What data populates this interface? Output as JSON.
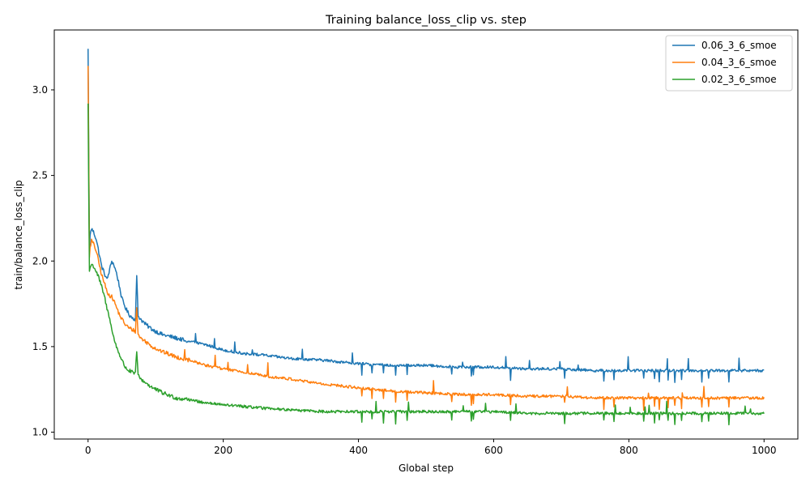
{
  "chart_data": {
    "type": "line",
    "title": "Training balance_loss_clip vs. step",
    "xlabel": "Global step",
    "ylabel": "train/balance_loss_clip",
    "xlim": [
      -50,
      1050
    ],
    "ylim": [
      0.96,
      3.35
    ],
    "xticks": [
      0,
      200,
      400,
      600,
      800,
      1000
    ],
    "yticks": [
      1.0,
      1.5,
      2.0,
      2.5,
      3.0
    ],
    "ytick_labels": [
      "1.0",
      "1.5",
      "2.0",
      "2.5",
      "3.0"
    ],
    "legend_position": "top-right",
    "grid": false,
    "series": [
      {
        "name": "0.06_3_6_smoe",
        "color": "#1f77b4",
        "x": [
          0,
          1,
          2,
          3,
          5,
          8,
          12,
          16,
          20,
          25,
          28,
          32,
          35,
          38,
          42,
          46,
          50,
          55,
          60,
          65,
          70,
          72,
          74,
          78,
          85,
          95,
          110,
          130,
          150,
          175,
          200,
          230,
          260,
          300,
          350,
          400,
          450,
          500,
          550,
          600,
          650,
          700,
          750,
          800,
          850,
          900,
          950,
          1000
        ],
        "y": [
          3.24,
          2.65,
          2.05,
          2.15,
          2.19,
          2.17,
          2.13,
          2.05,
          1.97,
          1.92,
          1.89,
          1.95,
          2.0,
          1.98,
          1.93,
          1.86,
          1.78,
          1.73,
          1.69,
          1.67,
          1.66,
          1.91,
          1.68,
          1.66,
          1.63,
          1.6,
          1.57,
          1.55,
          1.53,
          1.51,
          1.48,
          1.46,
          1.45,
          1.43,
          1.42,
          1.4,
          1.39,
          1.39,
          1.38,
          1.38,
          1.37,
          1.37,
          1.36,
          1.36,
          1.36,
          1.36,
          1.36,
          1.36
        ]
      },
      {
        "name": "0.04_3_6_smoe",
        "color": "#ff7f0e",
        "x": [
          0,
          1,
          2,
          3,
          5,
          8,
          12,
          16,
          20,
          25,
          28,
          32,
          35,
          38,
          42,
          46,
          50,
          55,
          60,
          65,
          70,
          72,
          74,
          78,
          85,
          95,
          110,
          130,
          150,
          175,
          200,
          230,
          260,
          300,
          350,
          400,
          450,
          500,
          550,
          600,
          650,
          700,
          750,
          800,
          850,
          900,
          950,
          1000
        ],
        "y": [
          3.14,
          2.6,
          2.02,
          2.08,
          2.12,
          2.1,
          2.06,
          1.99,
          1.92,
          1.86,
          1.82,
          1.8,
          1.79,
          1.77,
          1.73,
          1.69,
          1.66,
          1.63,
          1.61,
          1.6,
          1.59,
          1.73,
          1.57,
          1.55,
          1.53,
          1.5,
          1.47,
          1.44,
          1.42,
          1.39,
          1.37,
          1.35,
          1.33,
          1.31,
          1.28,
          1.26,
          1.24,
          1.23,
          1.22,
          1.22,
          1.21,
          1.21,
          1.2,
          1.2,
          1.2,
          1.2,
          1.2,
          1.2
        ]
      },
      {
        "name": "0.02_3_6_smoe",
        "color": "#2ca02c",
        "x": [
          0,
          1,
          2,
          3,
          5,
          8,
          12,
          16,
          20,
          25,
          28,
          32,
          35,
          38,
          42,
          46,
          50,
          55,
          60,
          65,
          70,
          72,
          74,
          78,
          85,
          95,
          110,
          130,
          150,
          175,
          200,
          230,
          260,
          300,
          350,
          400,
          450,
          500,
          550,
          600,
          650,
          700,
          750,
          800,
          850,
          900,
          950,
          1000
        ],
        "y": [
          2.92,
          2.4,
          1.94,
          1.96,
          1.98,
          1.97,
          1.94,
          1.9,
          1.85,
          1.78,
          1.72,
          1.67,
          1.6,
          1.55,
          1.5,
          1.46,
          1.42,
          1.38,
          1.36,
          1.35,
          1.34,
          1.48,
          1.33,
          1.31,
          1.29,
          1.26,
          1.23,
          1.2,
          1.19,
          1.17,
          1.16,
          1.15,
          1.14,
          1.13,
          1.12,
          1.12,
          1.12,
          1.12,
          1.12,
          1.12,
          1.11,
          1.11,
          1.11,
          1.11,
          1.11,
          1.11,
          1.11,
          1.11
        ]
      }
    ]
  }
}
